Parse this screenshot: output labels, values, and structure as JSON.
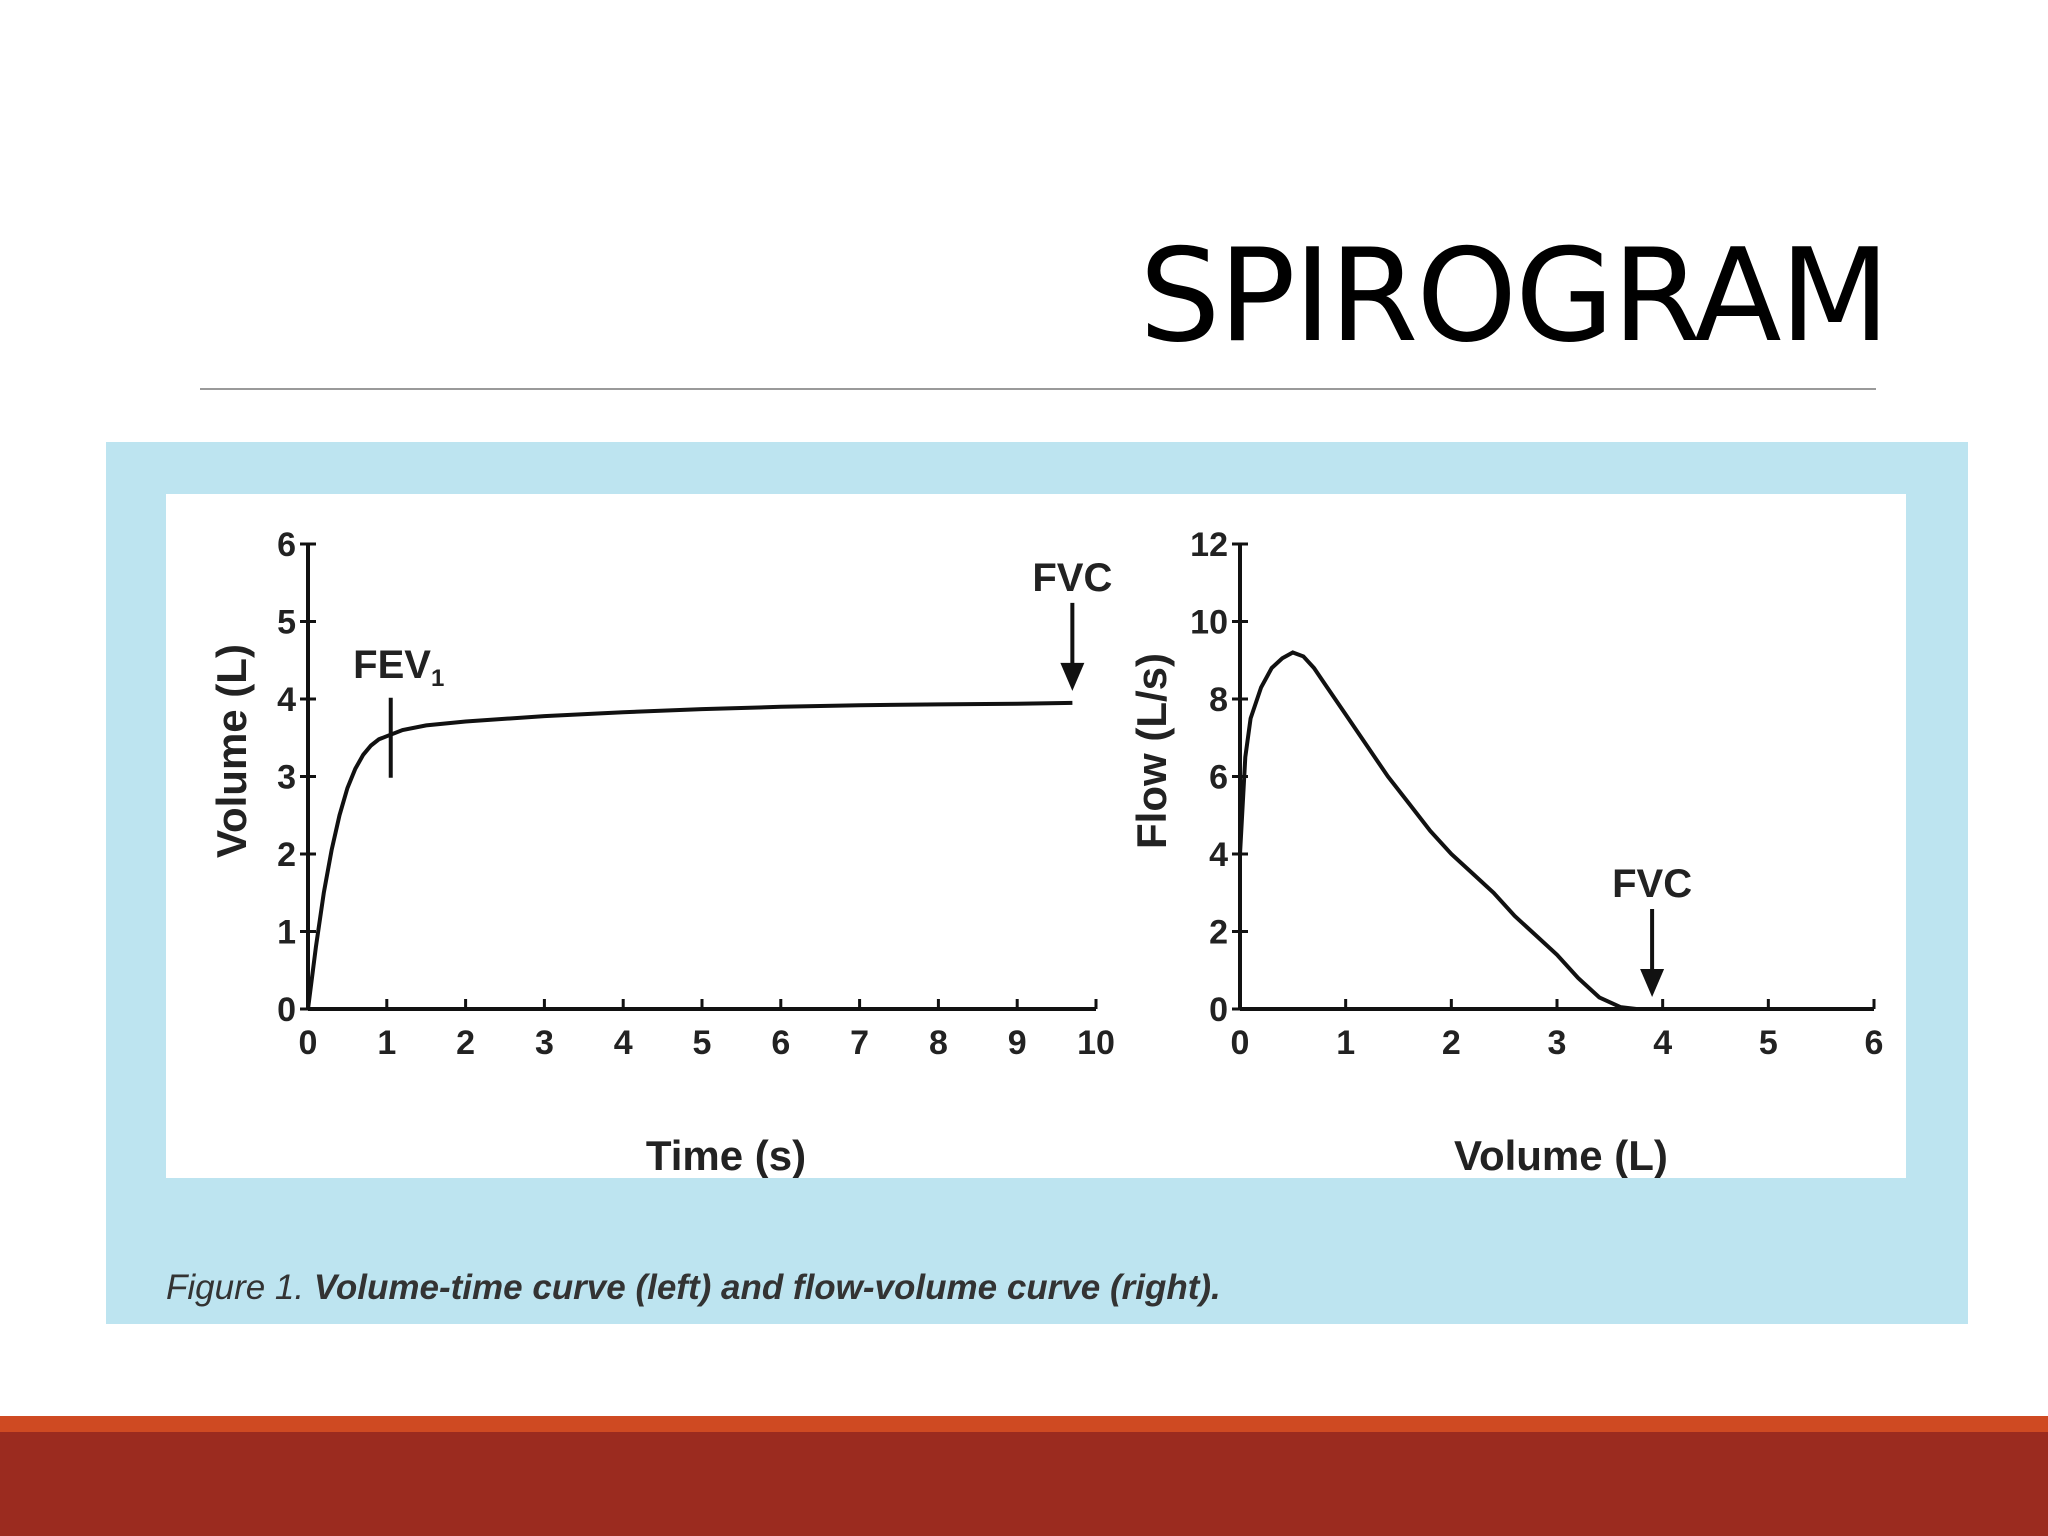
{
  "slide": {
    "title": "SPIROGRAM",
    "caption_label": "Figure 1.",
    "caption_text": "Volume-time curve (left) and flow-volume curve (right).",
    "colors": {
      "panel": "#bde4f0",
      "accent_stripe": "#cf4a22",
      "footer_band": "#9b2b1f"
    }
  },
  "chart_data": [
    {
      "type": "line",
      "xlabel": "Time (s)",
      "ylabel": "Volume (L)",
      "xlim": [
        0,
        10
      ],
      "ylim": [
        0,
        6
      ],
      "xticks": [
        0,
        1,
        2,
        3,
        4,
        5,
        6,
        7,
        8,
        9,
        10
      ],
      "yticks": [
        0,
        1,
        2,
        3,
        4,
        5,
        6
      ],
      "grid": false,
      "series": [
        {
          "x": [
            0,
            0.1,
            0.2,
            0.3,
            0.4,
            0.5,
            0.6,
            0.7,
            0.8,
            0.9,
            1.0,
            1.2,
            1.5,
            2.0,
            3.0,
            4.0,
            5.0,
            6.0,
            7.0,
            8.0,
            9.0,
            9.7
          ],
          "y": [
            0,
            0.8,
            1.5,
            2.05,
            2.5,
            2.85,
            3.1,
            3.28,
            3.4,
            3.48,
            3.52,
            3.6,
            3.66,
            3.71,
            3.78,
            3.83,
            3.87,
            3.9,
            3.92,
            3.93,
            3.94,
            3.95
          ]
        }
      ],
      "annotations": [
        {
          "label": "FEV",
          "subscript": "1",
          "x": 1.05,
          "y": 3.5,
          "kind": "vertical marker"
        },
        {
          "label": "FVC",
          "x": 9.7,
          "y": 3.95,
          "kind": "down arrow"
        }
      ]
    },
    {
      "type": "line",
      "xlabel": "Volume (L)",
      "ylabel": "Flow (L/s)",
      "xlim": [
        0,
        6
      ],
      "ylim": [
        0,
        12
      ],
      "xticks": [
        0,
        1,
        2,
        3,
        4,
        5,
        6
      ],
      "yticks": [
        0,
        2,
        4,
        6,
        8,
        10,
        12
      ],
      "grid": false,
      "series": [
        {
          "x": [
            0,
            0.05,
            0.1,
            0.2,
            0.3,
            0.4,
            0.5,
            0.6,
            0.7,
            0.8,
            1.0,
            1.2,
            1.4,
            1.6,
            1.8,
            2.0,
            2.2,
            2.4,
            2.6,
            2.8,
            3.0,
            3.2,
            3.4,
            3.6,
            3.75,
            3.9
          ],
          "y": [
            4.0,
            6.5,
            7.5,
            8.3,
            8.8,
            9.05,
            9.2,
            9.1,
            8.8,
            8.4,
            7.6,
            6.8,
            6.0,
            5.3,
            4.6,
            4.0,
            3.5,
            3.0,
            2.4,
            1.9,
            1.4,
            0.8,
            0.3,
            0.05,
            0.0,
            0.0
          ]
        }
      ],
      "annotations": [
        {
          "label": "FVC",
          "x": 3.9,
          "y": 0,
          "kind": "down arrow"
        }
      ]
    }
  ]
}
